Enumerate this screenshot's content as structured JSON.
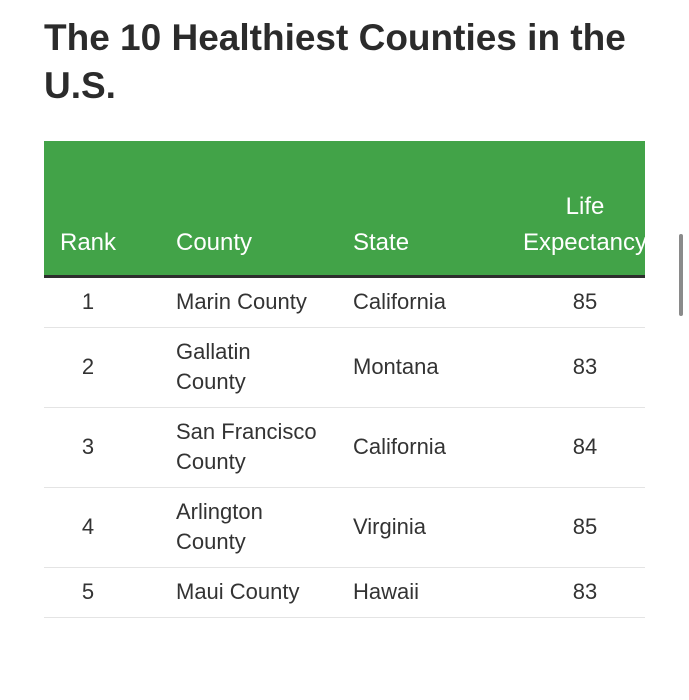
{
  "header": {
    "title": "The 10 Healthiest Counties in the U.S."
  },
  "table": {
    "columns": [
      "Rank",
      "County",
      "State",
      "Life Expectancy"
    ],
    "rows": [
      [
        1,
        "Marin County",
        "California",
        85
      ],
      [
        2,
        "Gallatin County",
        "Montana",
        83
      ],
      [
        3,
        "San Francisco County",
        "California",
        84
      ],
      [
        4,
        "Arlington County",
        "Virginia",
        85
      ],
      [
        5,
        "Maui County",
        "Hawaii",
        83
      ]
    ]
  }
}
